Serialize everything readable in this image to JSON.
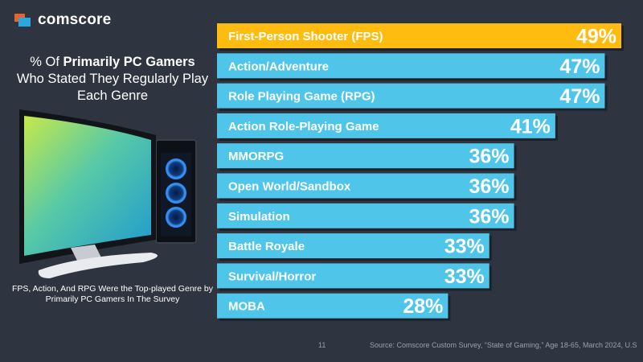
{
  "brand": {
    "name": "comscore"
  },
  "headline": {
    "prefix": "% Of ",
    "bold": "Primarily PC Gamers",
    "suffix": "Who Stated They Regularly Play Each Genre"
  },
  "note": "FPS, Action, And RPG Were the Top-played Genre by Primarily PC Gamers In The Survey",
  "page_number": "11",
  "source": "Source: Comscore Custom Survey, “State of Gaming,” Age 18-65, March 2024, U.S",
  "colors": {
    "highlight": "#fdbc0f",
    "bar": "#4fc5ea",
    "label": "#ffffff",
    "background": "#2e3440"
  },
  "chart_data": {
    "type": "bar",
    "orientation": "horizontal",
    "categories": [
      "First-Person Shooter (FPS)",
      "Action/Adventure",
      "Role Playing Game (RPG)",
      "Action Role-Playing Game",
      "MMORPG",
      "Open World/Sandbox",
      "Simulation",
      "Battle Royale",
      "Survival/Horror",
      "MOBA"
    ],
    "values": [
      49,
      47,
      47,
      41,
      36,
      36,
      36,
      33,
      33,
      28
    ],
    "value_labels": [
      "49%",
      "47%",
      "47%",
      "41%",
      "36%",
      "36%",
      "36%",
      "33%",
      "33%",
      "28%"
    ],
    "highlight_index": 0,
    "unit": "%"
  }
}
